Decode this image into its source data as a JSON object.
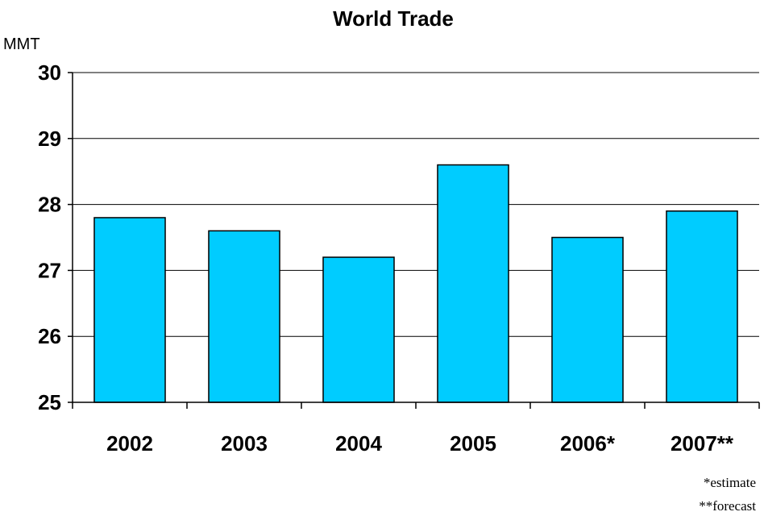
{
  "chart_data": {
    "type": "bar",
    "title": "World Trade",
    "ylabel": "MMT",
    "xlabel": "",
    "categories": [
      "2002",
      "2003",
      "2004",
      "2005",
      "2006*",
      "2007**"
    ],
    "values": [
      27.8,
      27.6,
      27.2,
      28.6,
      27.5,
      27.9
    ],
    "ylim": [
      25,
      30
    ],
    "yticks": [
      "25",
      "26",
      "27",
      "28",
      "29",
      "30"
    ],
    "grid": true,
    "legend": "none",
    "bar_color": "#00CCFF",
    "footnotes": [
      "*estimate",
      "**forecast"
    ]
  }
}
